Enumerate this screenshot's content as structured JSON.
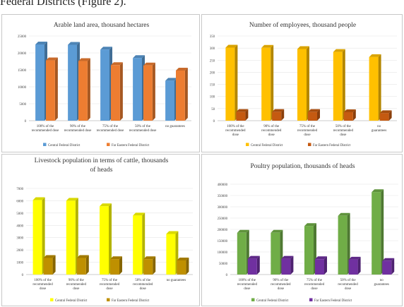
{
  "caption": "Federal Districts (Figure 2).",
  "chart_data": [
    {
      "type": "bar",
      "title": "Arable land area, thousand hectares",
      "categories": [
        "100% of the recommended dose",
        "90% of the recommended dose",
        "75% of the recommended dose",
        "50% of the recommended dose",
        "no guarantees"
      ],
      "series": [
        {
          "name": "Central Federal District",
          "values": [
            22500,
            22400,
            21000,
            18500,
            11800
          ],
          "color": "#5b9bd5"
        },
        {
          "name": "Far Eastern Federal District",
          "values": [
            17800,
            17600,
            16400,
            16300,
            14800
          ],
          "color": "#ed7d31"
        }
      ],
      "ylim": [
        0,
        25000
      ],
      "yticks": [
        0,
        5000,
        10000,
        15000,
        20000,
        25000
      ],
      "legend": "bottom"
    },
    {
      "type": "bar",
      "title": "Number of employees, thousand people",
      "categories": [
        "100% of the recommended dose",
        "90% of the recommended dose",
        "75% of the recommended dose",
        "50% of the recommended dose",
        "no guarantees"
      ],
      "series": [
        {
          "name": "Central Federal District",
          "values": [
            302,
            301,
            296,
            284,
            263
          ],
          "color": "#ffc000"
        },
        {
          "name": "Far Eastern Federal District",
          "values": [
            36,
            36,
            36,
            35,
            31
          ],
          "color": "#c55a11"
        }
      ],
      "ylim": [
        0,
        350
      ],
      "yticks": [
        0,
        50,
        100,
        150,
        200,
        250,
        300,
        350
      ],
      "legend": "bottom"
    },
    {
      "type": "bar",
      "title": "Livestock population in terms of cattle, thousands of heads",
      "categories": [
        "100% of the recommended dose",
        "90% of the recommended dose",
        "75% of the recommended dose",
        "50% of the recommended dose",
        "no guarantees"
      ],
      "series": [
        {
          "name": "Central Federal District",
          "values": [
            6050,
            6000,
            5550,
            4800,
            3300
          ],
          "color": "#ffff00"
        },
        {
          "name": "Far Eastern Federal District",
          "values": [
            1350,
            1350,
            1250,
            1250,
            1150
          ],
          "color": "#bf9000"
        }
      ],
      "ylim": [
        0,
        7000
      ],
      "yticks": [
        0,
        1000,
        2000,
        3000,
        4000,
        5000,
        6000,
        7000
      ],
      "legend": "bottom"
    },
    {
      "type": "bar",
      "title": "Poultry population, thousands of heads",
      "categories": [
        "100% of the recommended dose",
        "90% of the recommended dose",
        "75% of the recommended dose",
        "50% of the recommended dose",
        "no guarantees"
      ],
      "series": [
        {
          "name": "Central Federal District",
          "values": [
            185000,
            185000,
            215000,
            260000,
            365000
          ],
          "color": "#70ad47"
        },
        {
          "name": "Far Eastern Federal District",
          "values": [
            70000,
            70000,
            68000,
            66000,
            60000
          ],
          "color": "#7030a0"
        }
      ],
      "ylim": [
        0,
        400000
      ],
      "yticks": [
        0,
        50000,
        100000,
        150000,
        200000,
        250000,
        300000,
        350000,
        400000
      ],
      "legend": "bottom"
    }
  ]
}
